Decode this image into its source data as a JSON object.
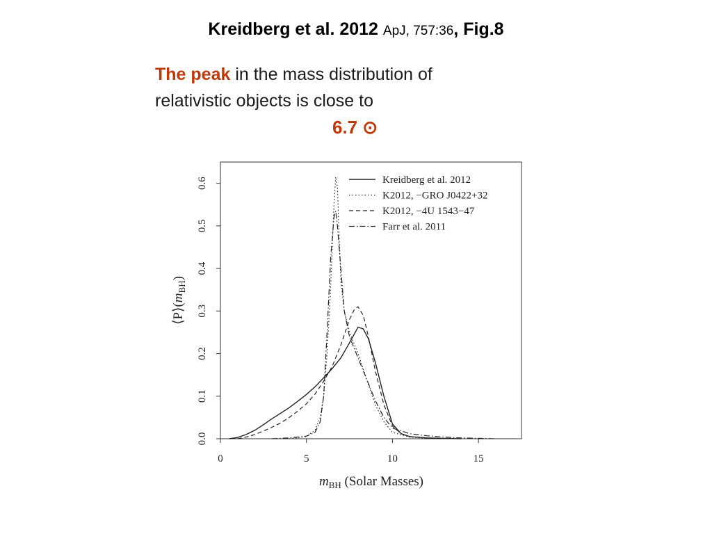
{
  "slide": {
    "title_bold": "Kreidberg et al. 2012",
    "title_ref": "ApJ, 757:36",
    "title_fig": ", Fig.8",
    "statement_accent": "The peak",
    "statement_line1": " in the mass distribution of",
    "statement_line2": "relativistic objects is close to",
    "peak_value": "6.7",
    "peak_symbol": "⊙"
  },
  "colors": {
    "accent": "#c0390b",
    "text": "#1a1a1a"
  },
  "chart_data": {
    "type": "line",
    "xlabel_italic": "m",
    "xlabel_sub": "BH",
    "xlabel_rest": " (Solar Masses)",
    "ylabel_prefix": "⟨P⟩(",
    "ylabel_italic": "m",
    "ylabel_sub": "BH",
    "ylabel_suffix": ")",
    "xlim": [
      0,
      17.5
    ],
    "ylim": [
      0,
      0.65
    ],
    "x_ticks": [
      "0",
      "5",
      "10",
      "15"
    ],
    "x_tick_values": [
      0,
      5,
      10,
      15
    ],
    "y_ticks": [
      "0.0",
      "0.1",
      "0.2",
      "0.3",
      "0.4",
      "0.5",
      "0.6"
    ],
    "y_tick_values": [
      0,
      0.1,
      0.2,
      0.3,
      0.4,
      0.5,
      0.6
    ],
    "grid": false,
    "legend_position": "top-right",
    "series": [
      {
        "name": "Kreidberg et al. 2012",
        "style": "solid",
        "x": [
          0.5,
          1,
          1.5,
          2,
          2.5,
          3,
          3.5,
          4,
          4.5,
          5,
          5.5,
          6,
          6.5,
          7,
          7.5,
          8,
          8.3,
          8.6,
          9,
          9.5,
          10,
          10.5,
          11,
          12,
          13,
          14
        ],
        "y": [
          0,
          0.003,
          0.01,
          0.02,
          0.033,
          0.047,
          0.06,
          0.073,
          0.088,
          0.104,
          0.122,
          0.143,
          0.165,
          0.19,
          0.225,
          0.262,
          0.258,
          0.235,
          0.18,
          0.1,
          0.035,
          0.012,
          0.005,
          0.002,
          0.001,
          0
        ]
      },
      {
        "name": "K2012, −GRO J0422+32",
        "style": "dotted",
        "x": [
          4,
          5,
          5.5,
          5.8,
          6,
          6.2,
          6.4,
          6.6,
          6.7,
          6.8,
          6.9,
          7,
          7.2,
          7.5,
          8,
          8.5,
          9,
          9.5,
          10,
          11,
          12,
          13
        ],
        "y": [
          0,
          0.005,
          0.02,
          0.05,
          0.1,
          0.2,
          0.35,
          0.55,
          0.615,
          0.59,
          0.48,
          0.37,
          0.3,
          0.25,
          0.2,
          0.14,
          0.08,
          0.04,
          0.015,
          0.004,
          0.001,
          0
        ]
      },
      {
        "name": "K2012, −4U 1543−47",
        "style": "dashed",
        "x": [
          1,
          1.5,
          2,
          2.5,
          3,
          3.5,
          4,
          4.5,
          5,
          5.5,
          6,
          6.5,
          7,
          7.5,
          7.8,
          8,
          8.3,
          8.6,
          9,
          9.5,
          10,
          10.5,
          11,
          12,
          13
        ],
        "y": [
          0,
          0.004,
          0.01,
          0.018,
          0.027,
          0.037,
          0.05,
          0.065,
          0.082,
          0.105,
          0.135,
          0.17,
          0.22,
          0.28,
          0.305,
          0.31,
          0.29,
          0.24,
          0.16,
          0.08,
          0.03,
          0.012,
          0.005,
          0.002,
          0
        ]
      },
      {
        "name": "Farr et al. 2011",
        "style": "dashdot",
        "x": [
          3,
          4,
          5,
          5.5,
          5.8,
          6,
          6.2,
          6.4,
          6.6,
          6.7,
          6.8,
          7,
          7.2,
          7.5,
          8,
          8.5,
          9,
          9.5,
          10,
          11,
          12,
          13,
          14,
          15,
          16
        ],
        "y": [
          0,
          0.002,
          0.006,
          0.015,
          0.04,
          0.1,
          0.25,
          0.42,
          0.52,
          0.535,
          0.5,
          0.4,
          0.3,
          0.24,
          0.19,
          0.14,
          0.09,
          0.05,
          0.025,
          0.012,
          0.007,
          0.004,
          0.002,
          0.001,
          0
        ]
      }
    ]
  }
}
